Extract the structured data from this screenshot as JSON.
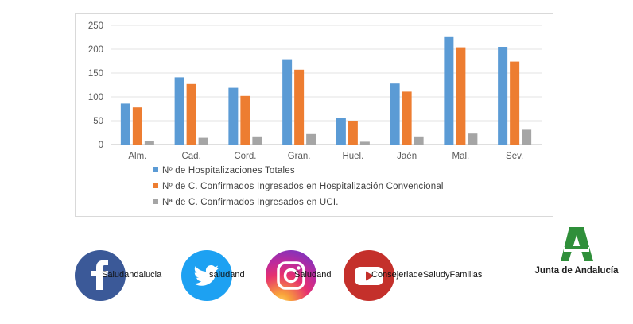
{
  "chart_data": {
    "type": "bar",
    "title": "",
    "xlabel": "",
    "ylabel": "",
    "ylim": [
      0,
      250
    ],
    "yticks": [
      0,
      50,
      100,
      150,
      200,
      250
    ],
    "grid": true,
    "legend_position": "bottom",
    "categories": [
      "Alm.",
      "Cad.",
      "Cord.",
      "Gran.",
      "Huel.",
      "Jaén",
      "Mal.",
      "Sev."
    ],
    "series": [
      {
        "name": "Nº de Hospitalizaciones Totales",
        "color": "#5b9bd5",
        "values": [
          86,
          141,
          119,
          179,
          56,
          128,
          227,
          205
        ]
      },
      {
        "name": "Nº de C. Confirmados Ingresados en Hospitalización Convencional",
        "color": "#ed7d31",
        "values": [
          78,
          127,
          102,
          157,
          50,
          111,
          204,
          174
        ]
      },
      {
        "name": "Nª de C. Confirmados Ingresados en UCI.",
        "color": "#a5a5a5",
        "values": [
          8,
          14,
          17,
          22,
          6,
          17,
          23,
          31
        ]
      }
    ]
  },
  "social": {
    "facebook": {
      "handle": "Saludandalucia",
      "icon": "facebook-icon",
      "color": "#3b5998"
    },
    "twitter": {
      "handle": "saludand",
      "icon": "twitter-bird-icon",
      "color": "#1da1f2"
    },
    "instagram": {
      "handle": "Saludand",
      "icon": "instagram-icon",
      "color": "#e6306f"
    },
    "youtube": {
      "handle": "ConsejeriadeSaludyFamilias",
      "icon": "youtube-play-icon",
      "color": "#c4302b"
    }
  },
  "logo": {
    "text": "Junta de Andalucía",
    "color": "#2f8f3a"
  }
}
